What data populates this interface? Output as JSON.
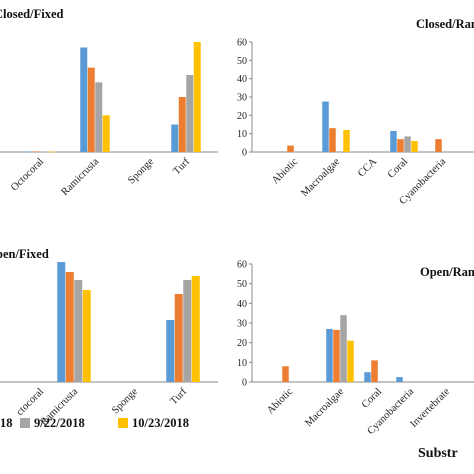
{
  "colors": {
    "c1": "#5b9bd5",
    "c2": "#ed7d31",
    "c3": "#a5a5a5",
    "c4": "#ffc000"
  },
  "legend": {
    "item1": "18",
    "item2": "9/22/2018",
    "item3": "10/23/2018"
  },
  "x_title": "Substr",
  "chart_data": [
    {
      "type": "bar",
      "title": "Closed/Fixed",
      "categories": [
        "Octocoral",
        "Ramicrusta",
        "Sponge",
        "Turf"
      ],
      "ylim": [
        0,
        60
      ],
      "series": [
        {
          "values": [
            0.2,
            57,
            0,
            15
          ]
        },
        {
          "values": [
            0.3,
            46,
            0,
            30
          ]
        },
        {
          "values": [
            0.3,
            38,
            0,
            42
          ]
        },
        {
          "values": [
            0.2,
            20,
            0,
            60
          ]
        }
      ]
    },
    {
      "type": "bar",
      "title": "Closed/Ran",
      "categories": [
        "Abiotic",
        "Macroalgae",
        "CCA",
        "Coral",
        "Cyanobacteria"
      ],
      "yticks": [
        0,
        10,
        20,
        30,
        40,
        50,
        60
      ],
      "ylim": [
        0,
        60
      ],
      "series": [
        {
          "values": [
            0,
            27.5,
            0,
            11.5,
            0
          ]
        },
        {
          "values": [
            3.5,
            13,
            0,
            7,
            7
          ]
        },
        {
          "values": [
            0,
            0,
            0,
            8.5,
            0
          ]
        },
        {
          "values": [
            0,
            12,
            0,
            6,
            0
          ]
        }
      ]
    },
    {
      "type": "bar",
      "title": "pen/Fixed",
      "categories": [
        "ctocoral",
        "Ramicrusta",
        "Sponge",
        "Turf"
      ],
      "ylim": [
        0,
        60
      ],
      "series": [
        {
          "values": [
            0,
            60,
            0,
            31
          ]
        },
        {
          "values": [
            0,
            55,
            0,
            44
          ]
        },
        {
          "values": [
            0,
            51,
            0,
            51
          ]
        },
        {
          "values": [
            0,
            46,
            0,
            53
          ]
        }
      ]
    },
    {
      "type": "bar",
      "title": "Open/Ran",
      "categories": [
        "Abiotic",
        "Macroalgae",
        "Coral",
        "Cyanobacteria",
        "Invertebrate"
      ],
      "yticks": [
        0,
        10,
        20,
        30,
        40,
        50,
        60
      ],
      "ylim": [
        0,
        60
      ],
      "series": [
        {
          "values": [
            0,
            27,
            5,
            2.5,
            0
          ]
        },
        {
          "values": [
            8,
            26.5,
            11,
            0,
            0
          ]
        },
        {
          "values": [
            0,
            34,
            0,
            0,
            0
          ]
        },
        {
          "values": [
            0,
            21,
            0,
            0,
            0
          ]
        }
      ]
    }
  ]
}
